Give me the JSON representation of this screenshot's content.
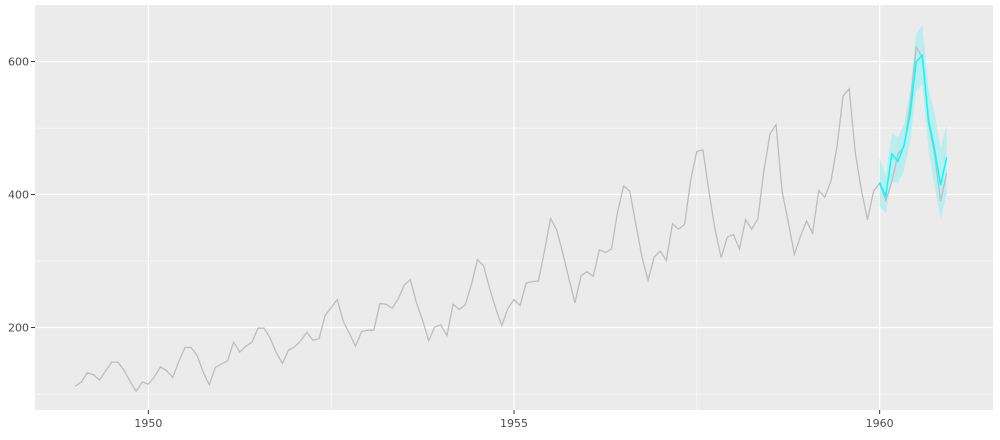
{
  "chart_data": {
    "type": "line",
    "title": "",
    "xlabel": "",
    "ylabel": "",
    "xlim": [
      1948.45,
      1961.55
    ],
    "ylim": [
      76,
      685
    ],
    "grid": true,
    "x_ticks": [
      {
        "value": 1950,
        "label": "1950"
      },
      {
        "value": 1955,
        "label": "1955"
      },
      {
        "value": 1960,
        "label": "1960"
      }
    ],
    "y_ticks": [
      {
        "value": 200,
        "label": "200"
      },
      {
        "value": 400,
        "label": "400"
      },
      {
        "value": 600,
        "label": "600"
      }
    ],
    "colors": {
      "panel": "#ebebeb",
      "observed": "#bdbdbd",
      "forecast": "#00ffff",
      "band": "#b2eeee"
    },
    "observed": {
      "start": 1949,
      "frequency": 12,
      "values": [
        112,
        118,
        132,
        129,
        121,
        135,
        148,
        148,
        136,
        119,
        104,
        118,
        115,
        126,
        141,
        135,
        125,
        149,
        170,
        170,
        158,
        133,
        114,
        140,
        145,
        150,
        178,
        163,
        172,
        178,
        199,
        199,
        184,
        162,
        146,
        166,
        171,
        180,
        193,
        181,
        183,
        218,
        230,
        242,
        209,
        191,
        172,
        194,
        196,
        196,
        236,
        235,
        229,
        243,
        264,
        272,
        237,
        211,
        180,
        201,
        204,
        188,
        235,
        227,
        234,
        264,
        302,
        293,
        259,
        229,
        203,
        229,
        242,
        233,
        267,
        269,
        270,
        315,
        364,
        347,
        312,
        274,
        237,
        278,
        284,
        277,
        317,
        313,
        318,
        374,
        413,
        405,
        355,
        306,
        271,
        306,
        315,
        301,
        356,
        348,
        355,
        422,
        465,
        467,
        404,
        347,
        305,
        336,
        340,
        318,
        362,
        348,
        363,
        435,
        491,
        505,
        404,
        359,
        310,
        337,
        360,
        342,
        406,
        396,
        420,
        472,
        548,
        559,
        463,
        407,
        362,
        405,
        417,
        391,
        419,
        461,
        472,
        535,
        622,
        606,
        508,
        461,
        390,
        432
      ]
    },
    "forecast": {
      "start": 1960,
      "frequency": 12,
      "values": [
        418,
        398,
        461,
        450,
        474,
        520,
        600,
        609,
        514,
        469,
        414,
        456
      ],
      "lower": [
        382,
        372,
        420,
        416,
        436,
        478,
        556,
        566,
        470,
        412,
        362,
        402
      ],
      "upper": [
        455,
        428,
        492,
        486,
        506,
        556,
        642,
        655,
        560,
        524,
        470,
        505
      ]
    }
  }
}
